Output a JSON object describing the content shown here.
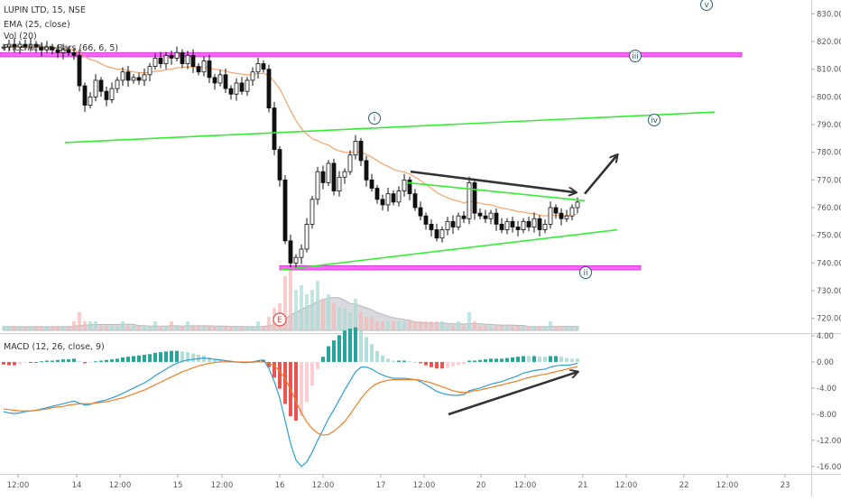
{
  "legend": {
    "symbol": "LUPIN LTD, 15, NSE",
    "ema": "EMA (25, close)",
    "vol": "Vol (20)",
    "pab": "Price-Action-Bars (66, 6, 5)",
    "macd": "MACD (12, 26, close, 9)"
  },
  "colors": {
    "up": "#26a69a",
    "down": "#ef5350",
    "ema": "#f7a26b",
    "support_band": "#ff66ff",
    "trendline": "#33ee33",
    "macd_line": "#2c9ed6",
    "signal_line": "#f07e25",
    "arrow": "#333333"
  },
  "wave_labels": [
    "v",
    "iii",
    "iv",
    "i",
    "ii"
  ],
  "earnings_marker": "E",
  "chart_data": [
    {
      "type": "candlestick",
      "title": "LUPIN LTD, 15, NSE",
      "ylim": [
        715,
        835
      ],
      "yticks": [
        "830.00",
        "820.00",
        "810.00",
        "800.00",
        "790.00",
        "780.00",
        "770.00",
        "760.00",
        "750.00",
        "740.00",
        "730.00",
        "720.00"
      ],
      "xticks": [
        "12:00",
        "14",
        "12:00",
        "15",
        "12:00",
        "16",
        "12:00",
        "17",
        "12:00",
        "20",
        "12:00",
        "21",
        "12:00",
        "22",
        "12:00",
        "23"
      ],
      "close": [
        818,
        819,
        818,
        819,
        818,
        819,
        818,
        817,
        818,
        817,
        816,
        817,
        816,
        815,
        804,
        797,
        800,
        806,
        802,
        799,
        803,
        806,
        809,
        806,
        807,
        806,
        808,
        811,
        814,
        812,
        815,
        814,
        816,
        812,
        815,
        811,
        809,
        813,
        807,
        805,
        808,
        803,
        801,
        805,
        802,
        806,
        809,
        812,
        810,
        796,
        781,
        770,
        748,
        740,
        742,
        745,
        754,
        763,
        773,
        769,
        776,
        766,
        771,
        773,
        779,
        784,
        777,
        770,
        767,
        763,
        761,
        765,
        762,
        766,
        770,
        765,
        760,
        757,
        754,
        752,
        749,
        752,
        755,
        753,
        757,
        756,
        769,
        758,
        757,
        756,
        758,
        754,
        752,
        755,
        753,
        752,
        755,
        753,
        756,
        752,
        754,
        760,
        758,
        756,
        757,
        760,
        762
      ],
      "ema": [
        818,
        818,
        818,
        818,
        818,
        818,
        818,
        818,
        818,
        817.8,
        817.6,
        817.5,
        817.3,
        817,
        816,
        814.5,
        813.5,
        813,
        812,
        811,
        810.5,
        810,
        810,
        809.5,
        809,
        808.8,
        808.7,
        808.8,
        809.2,
        809.4,
        809.8,
        810,
        810.5,
        810.6,
        810.8,
        810.8,
        810.6,
        810.8,
        810.5,
        810,
        809.8,
        809.3,
        808.8,
        808.5,
        808.2,
        808,
        808.1,
        808.4,
        808.5,
        807.6,
        805.5,
        803,
        799,
        795,
        791.5,
        788.5,
        786.5,
        784.9,
        784.2,
        783.2,
        782.6,
        781.3,
        780.5,
        780,
        779.9,
        780.2,
        780,
        779.2,
        778.2,
        777,
        775.8,
        774.9,
        773.8,
        773.2,
        772.9,
        772.1,
        771,
        769.8,
        768.4,
        767,
        765.5,
        764.4,
        763.6,
        762.8,
        762.4,
        761.7,
        762.3,
        762,
        761.6,
        761.2,
        761,
        760.4,
        759.8,
        759.5,
        759.1,
        758.6,
        758.4,
        758,
        757.8,
        757.3,
        757,
        757.2,
        757.2,
        757.1,
        757.1,
        757.3,
        757.7
      ],
      "volume": [
        1,
        1,
        1,
        1,
        1,
        1,
        1,
        1,
        1,
        1,
        1,
        1,
        1,
        2,
        4,
        2,
        2,
        2,
        1,
        1,
        1,
        1,
        2,
        1,
        1,
        1,
        1,
        1,
        2,
        1,
        1,
        2,
        1,
        1,
        2,
        1,
        1,
        1,
        1,
        1,
        1,
        1,
        1,
        1,
        1,
        1,
        1,
        2,
        1,
        3,
        5,
        6,
        12,
        14,
        9,
        10,
        8,
        9,
        11,
        7,
        8,
        6,
        5,
        5,
        4,
        7,
        4,
        3,
        3,
        2,
        2,
        2,
        2,
        2,
        2,
        2,
        2,
        2,
        2,
        2,
        2,
        2,
        1,
        1,
        2,
        1,
        4,
        2,
        1,
        1,
        1,
        1,
        1,
        1,
        1,
        1,
        1,
        1,
        1,
        1,
        1,
        2,
        1,
        1,
        1,
        1,
        1
      ]
    },
    {
      "type": "macd",
      "title": "MACD (12, 26, close, 9)",
      "ylim": [
        -17,
        4
      ],
      "yticks": [
        "4.00",
        "0.00",
        "-4.00",
        "-8.00",
        "-12.00",
        "-16.00"
      ],
      "macd": [
        -7.6,
        -7.8,
        -7.9,
        -7.8,
        -7.6,
        -7.5,
        -7.4,
        -7.2,
        -7,
        -6.8,
        -6.6,
        -6.4,
        -6.2,
        -6,
        -6.3,
        -6.6,
        -6.5,
        -6.2,
        -6,
        -5.8,
        -5.5,
        -5.2,
        -4.8,
        -4.4,
        -4,
        -3.6,
        -3.2,
        -2.7,
        -2.1,
        -1.6,
        -1.1,
        -0.6,
        -0.2,
        0.1,
        0.3,
        0.4,
        0.5,
        0.6,
        0.5,
        0.4,
        0.3,
        0.2,
        0.1,
        0,
        -0.1,
        -0.1,
        0,
        0.2,
        0.3,
        -1,
        -3,
        -5.5,
        -9,
        -12.5,
        -15,
        -16,
        -15.3,
        -13.8,
        -12,
        -10.4,
        -8.7,
        -7.3,
        -5.8,
        -4.3,
        -2.9,
        -1.5,
        -0.8,
        -0.8,
        -1.1,
        -1.6,
        -2,
        -2.3,
        -2.5,
        -2.5,
        -2.5,
        -2.6,
        -2.7,
        -3,
        -3.5,
        -4,
        -4.5,
        -4.8,
        -5,
        -5.1,
        -5.1,
        -5,
        -4.4,
        -4.2,
        -4,
        -3.7,
        -3.4,
        -3.2,
        -3,
        -2.7,
        -2.4,
        -2.1,
        -1.7,
        -1.5,
        -1.3,
        -1.2,
        -1.1,
        -0.8,
        -0.6,
        -0.5,
        -0.5,
        -0.4,
        -0.2
      ],
      "signal": [
        -7.2,
        -7.3,
        -7.4,
        -7.5,
        -7.5,
        -7.5,
        -7.4,
        -7.3,
        -7.2,
        -7,
        -6.9,
        -6.8,
        -6.6,
        -6.5,
        -6.4,
        -6.4,
        -6.4,
        -6.3,
        -6.2,
        -6.1,
        -5.9,
        -5.7,
        -5.5,
        -5.2,
        -4.9,
        -4.6,
        -4.3,
        -3.9,
        -3.5,
        -3.1,
        -2.7,
        -2.3,
        -1.9,
        -1.5,
        -1.2,
        -0.9,
        -0.6,
        -0.4,
        -0.2,
        -0.1,
        0,
        0,
        0,
        0,
        0,
        0,
        0,
        0,
        0,
        -0.2,
        -0.6,
        -1.4,
        -2.6,
        -4.2,
        -6,
        -7.8,
        -9.2,
        -10.2,
        -10.9,
        -11.2,
        -11.1,
        -10.6,
        -9.9,
        -9.1,
        -8,
        -6.8,
        -5.6,
        -4.6,
        -3.8,
        -3.3,
        -3,
        -2.8,
        -2.7,
        -2.7,
        -2.7,
        -2.7,
        -2.7,
        -2.8,
        -3,
        -3.2,
        -3.5,
        -3.8,
        -4.1,
        -4.4,
        -4.6,
        -4.7,
        -4.6,
        -4.4,
        -4.3,
        -4.1,
        -3.9,
        -3.7,
        -3.5,
        -3.3,
        -3.1,
        -2.9,
        -2.6,
        -2.4,
        -2.2,
        -2,
        -1.9,
        -1.7,
        -1.5,
        -1.3,
        -1.1,
        -0.9,
        -0.7
      ]
    }
  ]
}
